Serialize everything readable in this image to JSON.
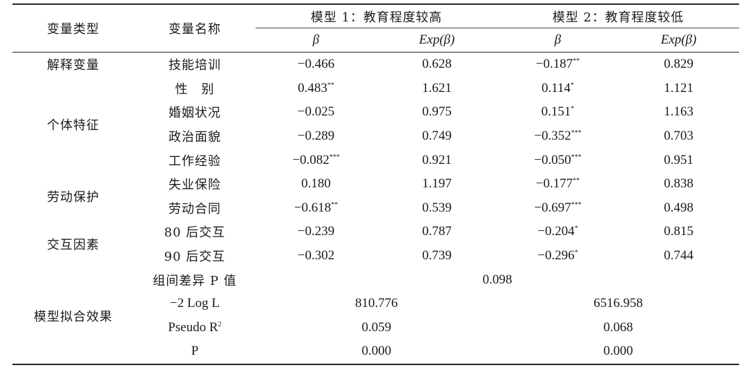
{
  "headers": {
    "var_type": "变量类型",
    "var_name": "变量名称",
    "model1": "模型 1：教育程度较高",
    "model2": "模型 2：教育程度较低",
    "beta": "β",
    "exp_beta": "Exp(β)"
  },
  "groups": {
    "explanatory": "解释变量",
    "individual": "个体特征",
    "labor": "劳动保护",
    "interaction": "交互因素",
    "fit": "模型拟合效果"
  },
  "rows": [
    {
      "name": "技能培训",
      "b1": "−0.466",
      "s1": "",
      "e1": "0.628",
      "b2": "−0.187",
      "s2": "**",
      "e2": "0.829"
    },
    {
      "name": "性　别",
      "b1": "0.483",
      "s1": "**",
      "e1": "1.621",
      "b2": "0.114",
      "s2": "*",
      "e2": "1.121"
    },
    {
      "name": "婚姻状况",
      "b1": "−0.025",
      "s1": "",
      "e1": "0.975",
      "b2": "0.151",
      "s2": "*",
      "e2": "1.163"
    },
    {
      "name": "政治面貌",
      "b1": "−0.289",
      "s1": "",
      "e1": "0.749",
      "b2": "−0.352",
      "s2": "***",
      "e2": "0.703"
    },
    {
      "name": "工作经验",
      "b1": "−0.082",
      "s1": "***",
      "e1": "0.921",
      "b2": "−0.050",
      "s2": "***",
      "e2": "0.951"
    },
    {
      "name": "失业保险",
      "b1": "0.180",
      "s1": "",
      "e1": "1.197",
      "b2": "−0.177",
      "s2": "**",
      "e2": "0.838"
    },
    {
      "name": "劳动合同",
      "b1": "−0.618",
      "s1": "**",
      "e1": "0.539",
      "b2": "−0.697",
      "s2": "***",
      "e2": "0.498"
    },
    {
      "name": "80 后交互",
      "b1": "−0.239",
      "s1": "",
      "e1": "0.787",
      "b2": "−0.204",
      "s2": "*",
      "e2": "0.815"
    },
    {
      "name": "90 后交互",
      "b1": "−0.302",
      "s1": "",
      "e1": "0.739",
      "b2": "−0.296",
      "s2": "*",
      "e2": "0.744"
    }
  ],
  "group_diff": {
    "label": "组间差异 P 值",
    "value": "0.098"
  },
  "fit_rows": [
    {
      "label": "−2 Log L",
      "m1": "810.776",
      "m2": "6516.958"
    },
    {
      "label": "Pseudo R",
      "label_sup": "2",
      "m1": "0.059",
      "m2": "0.068"
    },
    {
      "label": "P",
      "m1": "0.000",
      "m2": "0.000"
    }
  ]
}
